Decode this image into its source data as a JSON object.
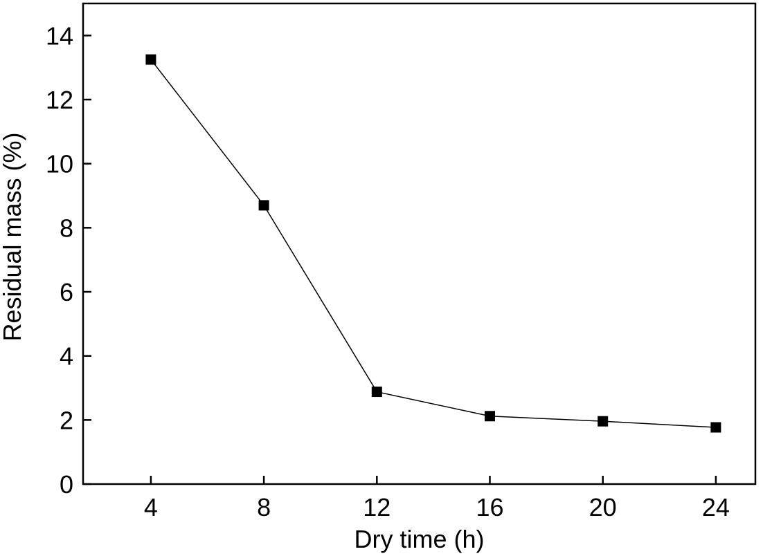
{
  "chart_data": {
    "type": "line",
    "xlabel": "Dry time (h)",
    "ylabel": "Residual mass (%)",
    "xlim": [
      1.6,
      25.4
    ],
    "ylim": [
      0,
      15
    ],
    "xticks": [
      4,
      8,
      12,
      16,
      20,
      24
    ],
    "yticks": [
      0,
      2,
      4,
      6,
      8,
      10,
      12,
      14
    ],
    "x_tick_labels": [
      "4",
      "8",
      "12",
      "16",
      "20",
      "24"
    ],
    "y_tick_labels": [
      "0",
      "2",
      "4",
      "6",
      "8",
      "10",
      "12",
      "14"
    ],
    "marker": "square",
    "color": "#000000",
    "grid": false,
    "series": [
      {
        "x": [
          4,
          8,
          12,
          16,
          20,
          24
        ],
        "values": [
          13.25,
          8.7,
          2.88,
          2.12,
          1.96,
          1.77
        ]
      }
    ]
  }
}
